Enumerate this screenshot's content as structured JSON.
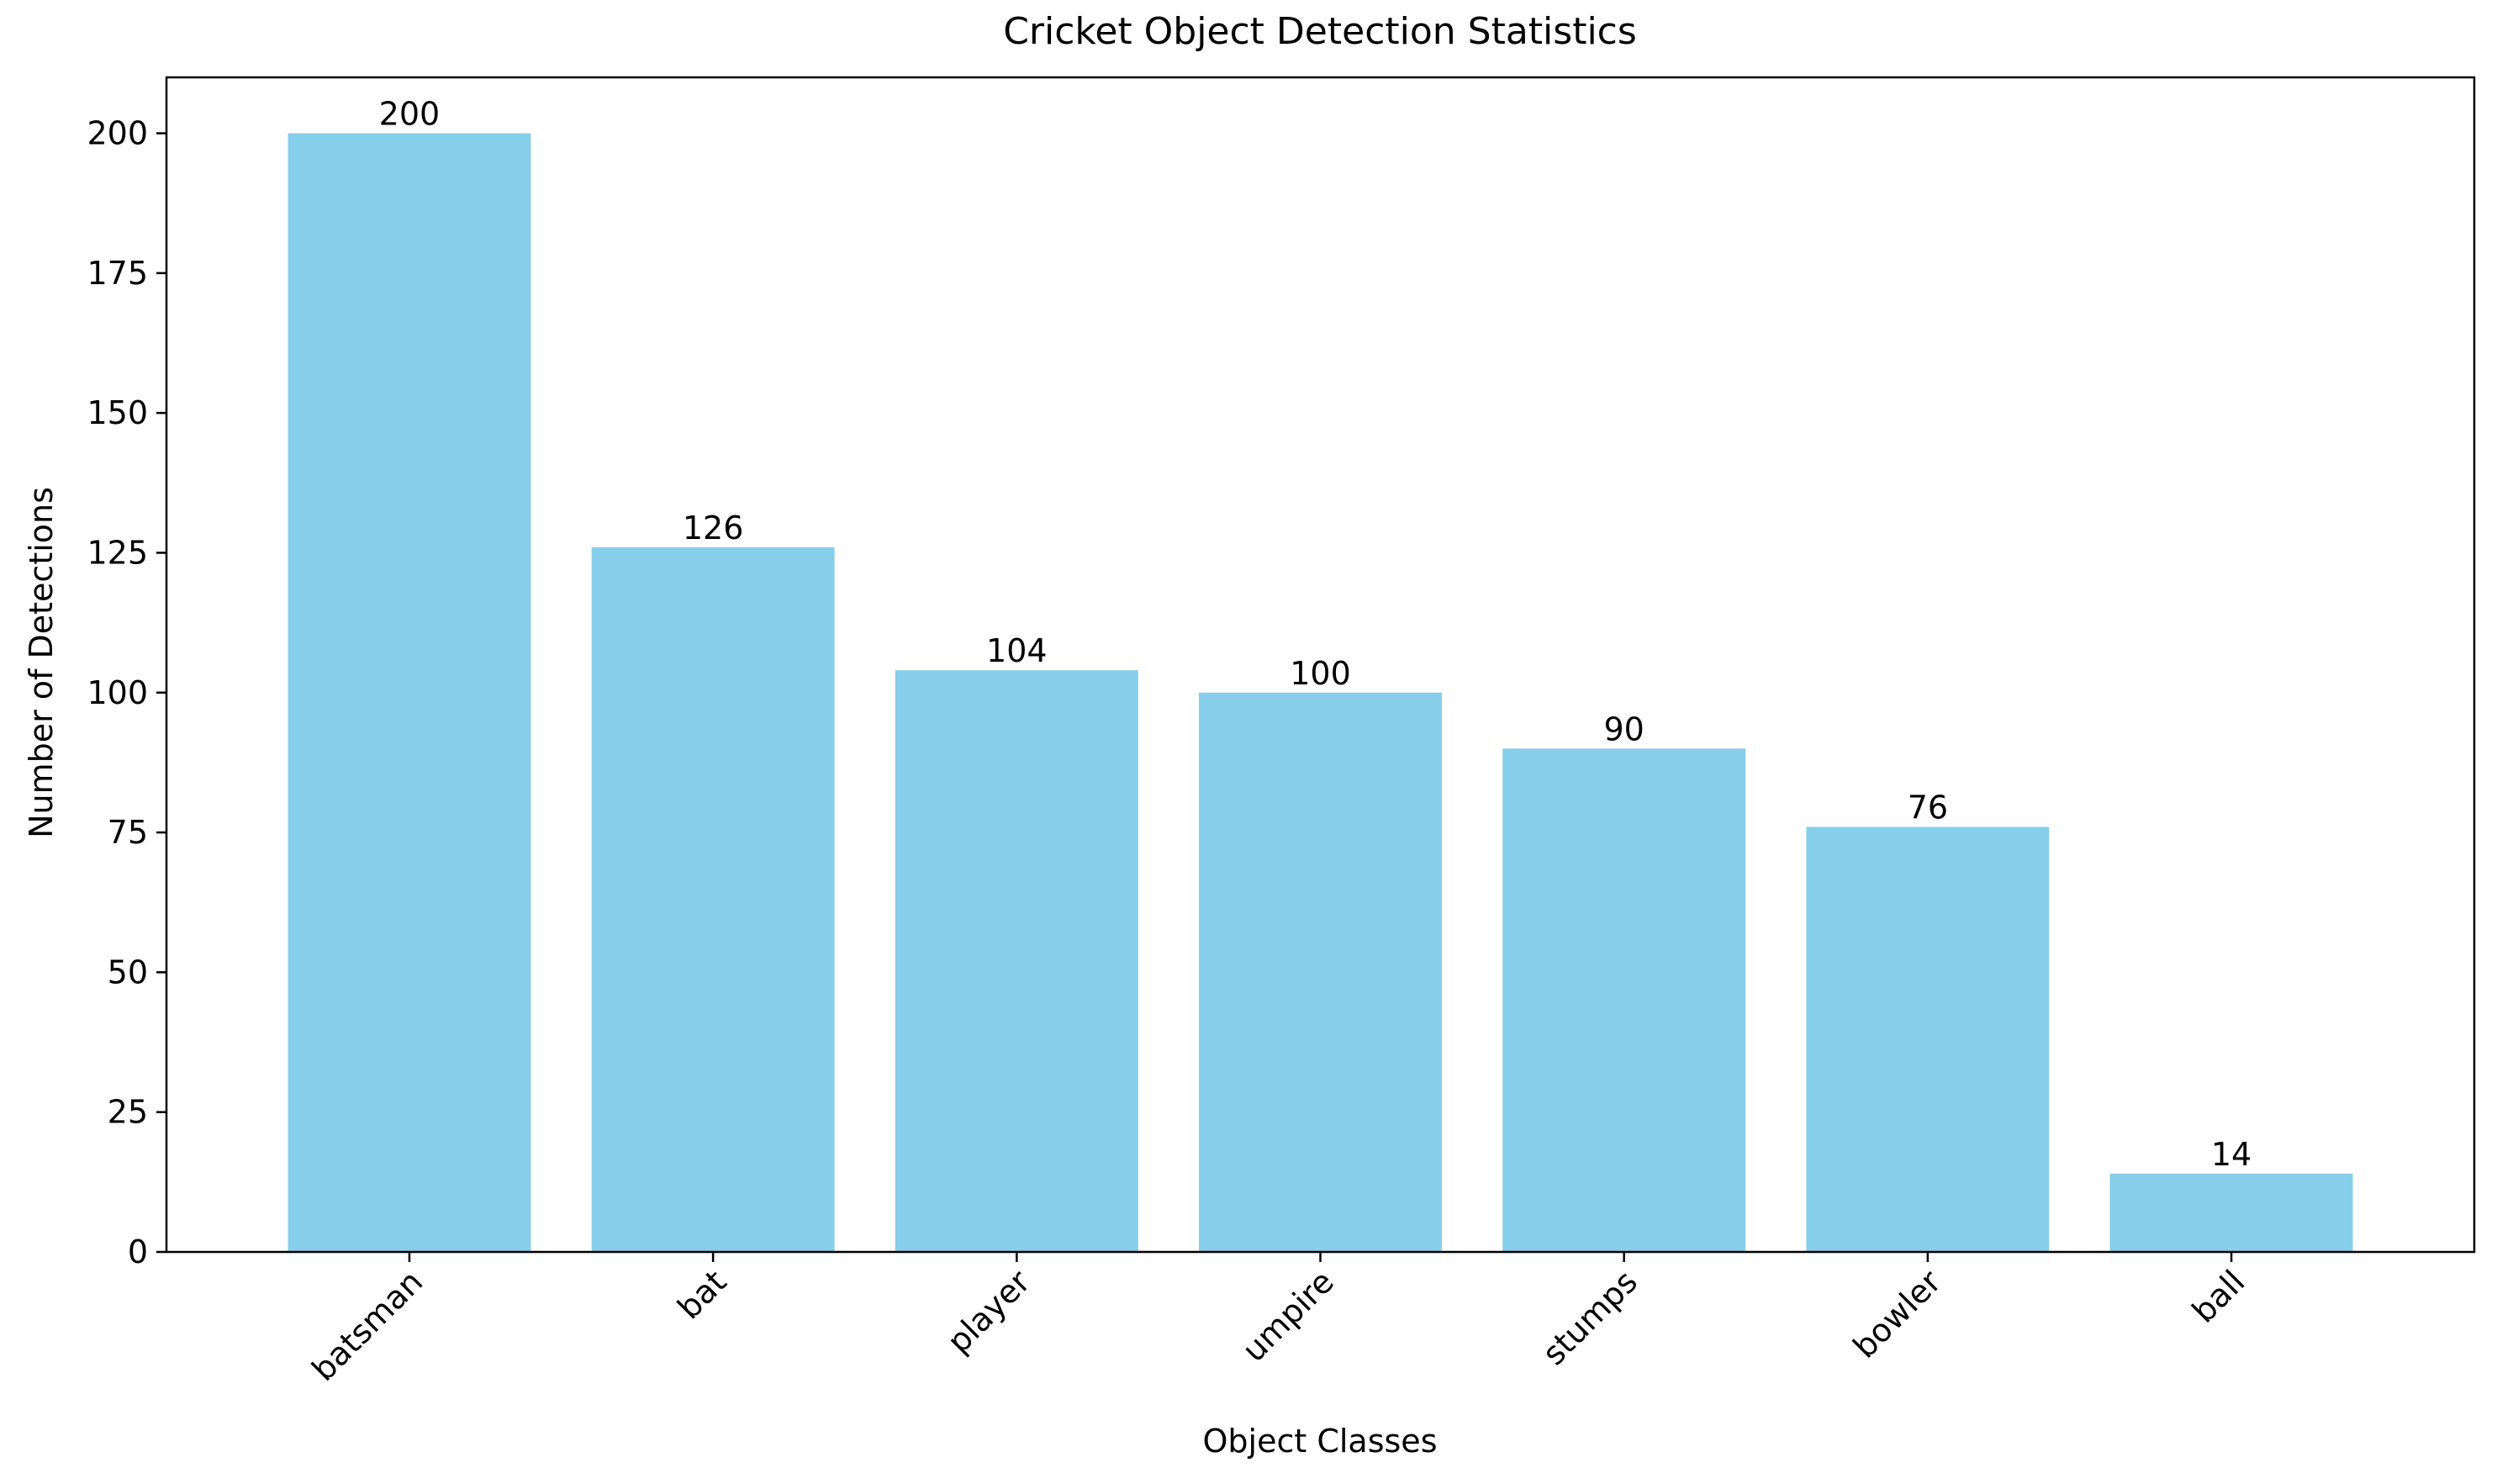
{
  "chart_data": {
    "type": "bar",
    "title": "Cricket Object Detection Statistics",
    "xlabel": "Object Classes",
    "ylabel": "Number of Detections",
    "categories": [
      "batsman",
      "bat",
      "player",
      "umpire",
      "stumps",
      "bowler",
      "ball"
    ],
    "values": [
      200,
      126,
      104,
      100,
      90,
      76,
      14
    ],
    "data_labels": [
      "200",
      "126",
      "104",
      "100",
      "90",
      "76",
      "14"
    ],
    "ylim": [
      0,
      210
    ],
    "yticks": [
      0,
      25,
      50,
      75,
      100,
      125,
      150,
      175,
      200
    ],
    "ytick_labels": [
      "0",
      "25",
      "50",
      "75",
      "100",
      "125",
      "150",
      "175",
      "200"
    ],
    "x_tick_rotation_deg": 45,
    "grid": false,
    "legend": "none",
    "bar_color": "#87CEEB",
    "axis_color": "#000000"
  }
}
